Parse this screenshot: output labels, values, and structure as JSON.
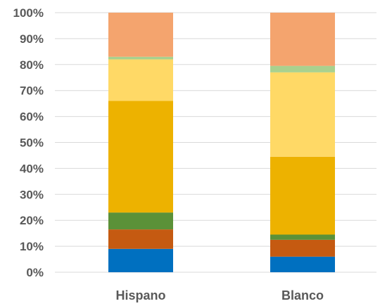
{
  "chart_data": {
    "type": "bar",
    "stacked": true,
    "orientation": "vertical",
    "categories": [
      "Hispano",
      "Blanco"
    ],
    "series": [
      {
        "color": "#0070c0",
        "values": [
          9,
          6
        ]
      },
      {
        "color": "#c55a11",
        "values": [
          7.5,
          6.5
        ]
      },
      {
        "color": "#5b9138",
        "values": [
          6.5,
          2
        ]
      },
      {
        "color": "#edb200",
        "values": [
          43,
          30
        ]
      },
      {
        "color": "#ffd966",
        "values": [
          16,
          32.5
        ]
      },
      {
        "color": "#a9d18e",
        "values": [
          1,
          2.5
        ]
      },
      {
        "color": "#f4a46e",
        "values": [
          17,
          20.5
        ]
      }
    ],
    "y_ticks": [
      "0%",
      "10%",
      "20%",
      "30%",
      "40%",
      "50%",
      "60%",
      "70%",
      "80%",
      "90%",
      "100%"
    ],
    "ylim": [
      0,
      100
    ],
    "grid": true,
    "legend": "none"
  }
}
